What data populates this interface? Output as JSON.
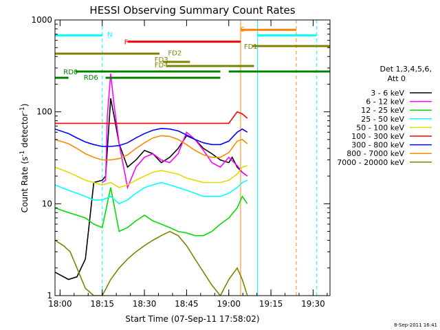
{
  "chart_data": {
    "type": "line",
    "title": "HESSI Observing Summary Count Rates",
    "xlabel": "Start Time (07-Sep-11 17:58:02)",
    "ylabel": "Count Rate (s",
    "ylabel_sup1": "-1",
    "ylabel_mid": " detector",
    "ylabel_sup2": "-1",
    "ylabel_end": ")",
    "yscale": "log",
    "xlim": [
      17.97,
      19.6
    ],
    "ylim": [
      1,
      1000
    ],
    "x_ticks": [
      {
        "value": 18.0,
        "label": "18:00"
      },
      {
        "value": 18.25,
        "label": "18:15"
      },
      {
        "value": 18.5,
        "label": "18:30"
      },
      {
        "value": 18.75,
        "label": "18:45"
      },
      {
        "value": 19.0,
        "label": "19:00"
      },
      {
        "value": 19.25,
        "label": "19:15"
      },
      {
        "value": 19.5,
        "label": "19:30"
      }
    ],
    "y_ticks": [
      {
        "value": 1,
        "label": "1"
      },
      {
        "value": 10,
        "label": "10"
      },
      {
        "value": 100,
        "label": "100"
      },
      {
        "value": 1000,
        "label": "1000"
      }
    ],
    "legend_title1": "Det 1,3,4,5,6,",
    "legend_title2": "Att 0",
    "legend_position": "right",
    "series": [
      {
        "name": "3 - 6 keV",
        "color": "#000000",
        "x": [
          17.97,
          18.05,
          18.1,
          18.15,
          18.2,
          18.25,
          18.27,
          18.3,
          18.32,
          18.35,
          18.4,
          18.45,
          18.5,
          18.55,
          18.6,
          18.65,
          18.7,
          18.75,
          18.8,
          18.85,
          18.9,
          18.95,
          19.0,
          19.02,
          19.05,
          19.08,
          19.11
        ],
        "y": [
          1.8,
          1.5,
          1.6,
          2.5,
          17,
          18,
          20,
          140,
          90,
          45,
          25,
          30,
          38,
          35,
          28,
          32,
          40,
          55,
          50,
          40,
          35,
          30,
          28,
          32,
          25,
          22,
          20
        ]
      },
      {
        "name": "6 - 12 keV",
        "color": "#ff00ff",
        "x": [
          18.25,
          18.27,
          18.28,
          18.3,
          18.32,
          18.35,
          18.4,
          18.45,
          18.5,
          18.55,
          18.6,
          18.65,
          18.7,
          18.75,
          18.8,
          18.85,
          18.9,
          18.95,
          19.0,
          19.05,
          19.08,
          19.11
        ],
        "y": [
          17,
          18,
          90,
          260,
          120,
          45,
          15,
          25,
          32,
          35,
          30,
          28,
          35,
          60,
          50,
          38,
          28,
          25,
          32,
          26,
          22,
          20
        ]
      },
      {
        "name": "12 - 25 keV",
        "color": "#00dd00",
        "x": [
          17.97,
          18.05,
          18.1,
          18.15,
          18.2,
          18.25,
          18.3,
          18.35,
          18.4,
          18.45,
          18.5,
          18.55,
          18.6,
          18.65,
          18.7,
          18.75,
          18.8,
          18.85,
          18.9,
          18.95,
          19.0,
          19.05,
          19.08,
          19.11
        ],
        "y": [
          9,
          8,
          7.5,
          7,
          6,
          5.5,
          15,
          5,
          5.5,
          6.5,
          7.5,
          6.5,
          6,
          5.5,
          5,
          4.8,
          4.5,
          4.5,
          5,
          6,
          7,
          9,
          12,
          10
        ]
      },
      {
        "name": "25 - 50 keV",
        "color": "#00ffff",
        "x": [
          17.97,
          18.05,
          18.1,
          18.15,
          18.2,
          18.25,
          18.3,
          18.35,
          18.4,
          18.45,
          18.5,
          18.55,
          18.6,
          18.65,
          18.7,
          18.75,
          18.8,
          18.85,
          18.9,
          18.95,
          19.0,
          19.05,
          19.08,
          19.11
        ],
        "y": [
          16,
          14,
          13,
          12,
          11,
          11,
          12,
          10,
          11,
          13,
          15,
          16,
          17,
          16,
          15,
          14,
          13,
          12,
          12,
          12,
          13,
          15,
          17,
          18
        ]
      },
      {
        "name": "50 - 100 keV",
        "color": "#dddd00",
        "x": [
          17.97,
          18.05,
          18.1,
          18.15,
          18.2,
          18.25,
          18.3,
          18.35,
          18.4,
          18.45,
          18.5,
          18.55,
          18.6,
          18.65,
          18.7,
          18.75,
          18.8,
          18.85,
          18.9,
          18.95,
          19.0,
          19.05,
          19.08,
          19.11
        ],
        "y": [
          25,
          22,
          20,
          18,
          17,
          16,
          17,
          15,
          16,
          18,
          20,
          22,
          23,
          22,
          21,
          19,
          18,
          17,
          17,
          17,
          18,
          21,
          25,
          26
        ]
      },
      {
        "name": "100 - 300 keV",
        "color": "#ff0000",
        "x": [
          17.97,
          18.05,
          18.1,
          18.15,
          18.2,
          18.25,
          18.3,
          18.35,
          18.4,
          18.45,
          18.5,
          18.55,
          18.6,
          18.65,
          18.7,
          18.75,
          18.8,
          18.85,
          18.9,
          18.95,
          19.0,
          19.05,
          19.08,
          19.11
        ],
        "y": [
          75,
          75,
          75,
          75,
          75,
          75,
          75,
          75,
          75,
          75,
          75,
          75,
          75,
          75,
          75,
          75,
          75,
          75,
          75,
          75,
          75,
          100,
          95,
          85
        ]
      },
      {
        "name": "300 - 800 keV",
        "color": "#0000ff",
        "x": [
          17.97,
          18.05,
          18.1,
          18.15,
          18.2,
          18.25,
          18.3,
          18.35,
          18.4,
          18.45,
          18.5,
          18.55,
          18.6,
          18.65,
          18.7,
          18.75,
          18.8,
          18.85,
          18.9,
          18.95,
          19.0,
          19.05,
          19.08,
          19.11
        ],
        "y": [
          65,
          58,
          52,
          47,
          44,
          42,
          42,
          43,
          46,
          52,
          58,
          63,
          66,
          65,
          62,
          56,
          50,
          46,
          44,
          44,
          48,
          60,
          65,
          60
        ]
      },
      {
        "name": "800 - 7000 keV",
        "color": "#ff8800",
        "x": [
          17.97,
          18.05,
          18.1,
          18.15,
          18.2,
          18.25,
          18.3,
          18.35,
          18.4,
          18.45,
          18.5,
          18.55,
          18.6,
          18.65,
          18.7,
          18.75,
          18.8,
          18.85,
          18.9,
          18.95,
          19.0,
          19.05,
          19.08,
          19.11
        ],
        "y": [
          50,
          45,
          40,
          35,
          32,
          30,
          30,
          31,
          34,
          40,
          46,
          52,
          55,
          54,
          50,
          44,
          38,
          34,
          32,
          32,
          36,
          48,
          50,
          45
        ]
      },
      {
        "name": "7000 - 20000 keV",
        "color": "#808000",
        "x": [
          17.97,
          18.02,
          18.06,
          18.1,
          18.15,
          18.2,
          18.25,
          18.3,
          18.35,
          18.4,
          18.45,
          18.5,
          18.55,
          18.6,
          18.65,
          18.7,
          18.75,
          18.8,
          18.85,
          18.9,
          18.95,
          19.0,
          19.05,
          19.08,
          19.11
        ],
        "y": [
          4,
          3.5,
          3,
          2,
          1.2,
          1,
          1,
          1.5,
          2,
          2.5,
          3,
          3.5,
          4,
          4.5,
          5,
          4.5,
          3.5,
          2.5,
          1.8,
          1.3,
          1,
          1.5,
          2,
          1.5,
          1
        ]
      }
    ],
    "flags": [
      {
        "name": "N",
        "color": "#00ffff",
        "y": 680,
        "label_x": 18.28,
        "label_y": 700,
        "segments": [
          [
            17.97,
            18.25
          ],
          [
            19.17,
            19.52
          ]
        ]
      },
      {
        "name": "S",
        "color": "#ff8800",
        "y": 780,
        "label_x": 19.07,
        "label_y": 800,
        "segments": [
          [
            19.07,
            19.4
          ]
        ]
      },
      {
        "name": "F",
        "color": "#ff0000",
        "y": 580,
        "label_x": 18.38,
        "label_y": 580,
        "segments": [
          [
            18.4,
            19.07
          ]
        ]
      },
      {
        "name": "FD1",
        "color": "#808000",
        "y": 520,
        "label_x": 19.09,
        "label_y": 520,
        "segments": [
          [
            19.14,
            19.6
          ]
        ]
      },
      {
        "name": "FD2",
        "color": "#808000",
        "y": 430,
        "label_x": 18.64,
        "label_y": 440,
        "segments": [
          [
            17.97,
            18.59
          ]
        ]
      },
      {
        "name": "FD3",
        "color": "#808000",
        "y": 350,
        "label_x": 18.56,
        "label_y": 375,
        "segments": [
          [
            18.61,
            18.77
          ]
        ]
      },
      {
        "name": "FD4",
        "color": "#808000",
        "y": 315,
        "label_x": 18.56,
        "label_y": 325,
        "segments": [
          [
            18.63,
            19.15
          ]
        ]
      },
      {
        "name": "RD0",
        "color": "#008000",
        "y": 275,
        "label_x": 18.02,
        "label_y": 275,
        "segments": [
          [
            18.09,
            18.95
          ],
          [
            19.0,
            19.6
          ]
        ]
      },
      {
        "name": "RD6",
        "color": "#008000",
        "y": 235,
        "label_x": 18.14,
        "label_y": 240,
        "segments": [
          [
            17.97,
            18.05
          ],
          [
            18.27,
            18.95
          ]
        ]
      }
    ],
    "vlines": [
      {
        "x": 18.25,
        "color": "#00ffff",
        "style": "dash"
      },
      {
        "x": 19.07,
        "color": "#ff8800",
        "style": "solid"
      },
      {
        "x": 19.17,
        "color": "#00ffff",
        "style": "solid"
      },
      {
        "x": 19.4,
        "color": "#ff8800",
        "style": "dash"
      },
      {
        "x": 19.52,
        "color": "#00ffff",
        "style": "dash"
      }
    ],
    "footer": "8-Sep-2011 16:41"
  }
}
